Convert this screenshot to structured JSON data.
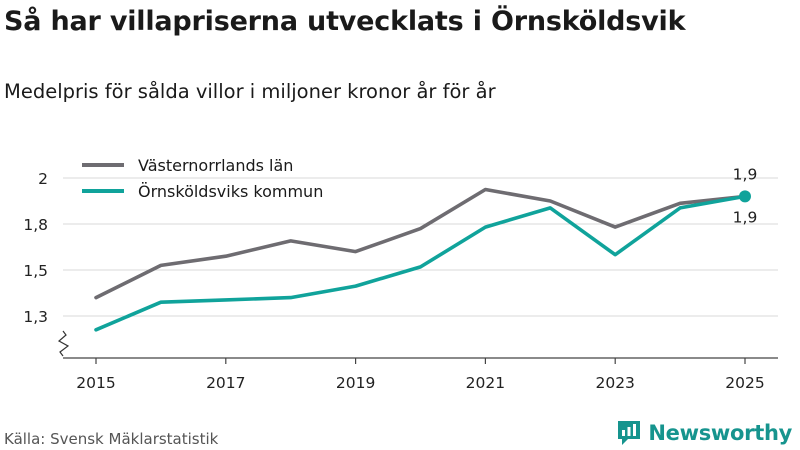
{
  "header": {
    "title": "Så har villapriserna utvecklats i Örnsköldsvik",
    "subtitle": "Medelpris för sålda villor i miljoner kronor år för år"
  },
  "footer": {
    "source": "Källa: Svensk Mäklarstatistik",
    "brand": "Newsworthy"
  },
  "colors": {
    "lan": "#6e6c71",
    "kommun": "#10a39b",
    "grid": "#d9d9d9",
    "brand": "#16948e"
  },
  "chart_data": {
    "type": "line",
    "title": "Så har villapriserna utvecklats i Örnsköldsvik",
    "subtitle": "Medelpris för sålda villor i miljoner kronor år för år",
    "xlabel": "",
    "ylabel": "",
    "x": [
      2015,
      2016,
      2017,
      2018,
      2019,
      2020,
      2021,
      2022,
      2023,
      2024,
      2025
    ],
    "x_ticks": [
      2015,
      2017,
      2019,
      2021,
      2023,
      2025
    ],
    "y_ticks": [
      1.3,
      1.5,
      1.8,
      2.0
    ],
    "y_tick_labels": [
      "1,3",
      "1,5",
      "1,8",
      "2"
    ],
    "ylim": [
      1.3,
      2.0
    ],
    "axis_break": true,
    "legend": "top-left",
    "series": [
      {
        "name": "Västernorrlands län",
        "color": "#6e6c71",
        "values": [
          1.38,
          1.53,
          1.59,
          1.69,
          1.62,
          1.77,
          1.95,
          1.9,
          1.78,
          1.89,
          1.92
        ],
        "end_label": "1,9"
      },
      {
        "name": "Örnsköldsviks kommun",
        "color": "#10a39b",
        "values": [
          1.24,
          1.36,
          1.37,
          1.38,
          1.43,
          1.52,
          1.78,
          1.87,
          1.6,
          1.87,
          1.92
        ],
        "end_label": "1,9"
      }
    ]
  }
}
